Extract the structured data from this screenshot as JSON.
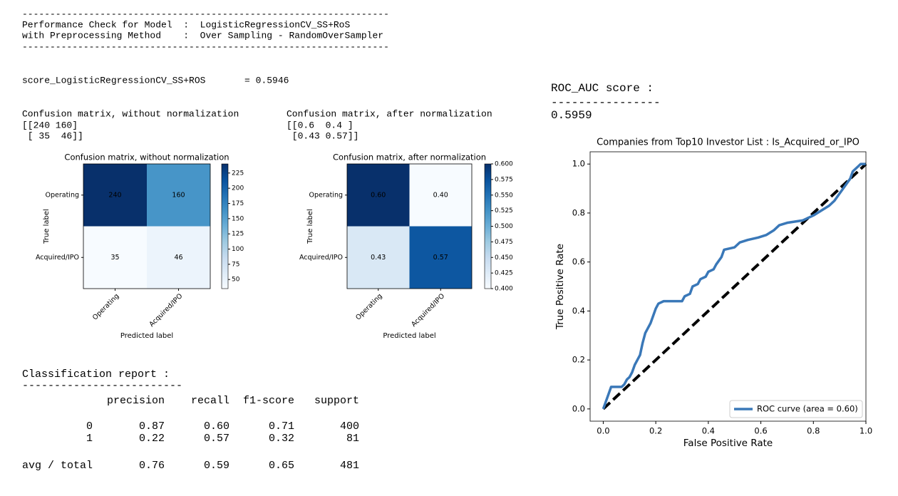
{
  "header": {
    "rule_top": "------------------------------------------------------------------",
    "line1": "Performance Check for Model  :  LogisticRegressionCV_SS+RoS",
    "line2": "with Preprocessing Method    :  Over Sampling - RandomOverSampler",
    "rule_bottom": "------------------------------------------------------------------"
  },
  "score_line": "score_LogisticRegressionCV_SS+ROS       = 0.5946",
  "cm_text": [
    {
      "title": "Confusion matrix, without normalization",
      "lines": [
        "[[240 160]",
        " [ 35  46]]"
      ]
    },
    {
      "title": "Confusion matrix, after normalization",
      "lines": [
        "[[0.6  0.4 ]",
        " [0.43 0.57]]"
      ]
    }
  ],
  "roc_text": {
    "title": "ROC_AUC score :",
    "rule": "----------------",
    "value": "0.5959"
  },
  "report": {
    "title": "Classification report :",
    "rule": "-------------------------",
    "columns": [
      "precision",
      "recall",
      "f1-score",
      "support"
    ],
    "rows": [
      {
        "label": "0",
        "values": [
          "0.87",
          "0.60",
          "0.71",
          "400"
        ]
      },
      {
        "label": "1",
        "values": [
          "0.22",
          "0.57",
          "0.32",
          "81"
        ]
      },
      {
        "label": "avg / total",
        "values": [
          "0.76",
          "0.59",
          "0.65",
          "481"
        ]
      }
    ]
  },
  "chart_data": [
    {
      "type": "heatmap",
      "title": "Confusion matrix, without normalization",
      "xlabel": "Predicted label",
      "ylabel": "True label",
      "x_categories": [
        "Operating",
        "Acquired/IPO"
      ],
      "y_categories": [
        "Operating",
        "Acquired/IPO"
      ],
      "values": [
        [
          240,
          160
        ],
        [
          35,
          46
        ]
      ],
      "colormap": "Blues",
      "clim": [
        35,
        240
      ],
      "cticks": [
        50,
        75,
        100,
        125,
        150,
        175,
        200,
        225
      ]
    },
    {
      "type": "heatmap",
      "title": "Confusion matrix, after normalization",
      "xlabel": "Predicted label",
      "ylabel": "True label",
      "x_categories": [
        "Operating",
        "Acquired/IPO"
      ],
      "y_categories": [
        "Operating",
        "Acquired/IPO"
      ],
      "values": [
        [
          0.6,
          0.4
        ],
        [
          0.43,
          0.57
        ]
      ],
      "value_labels": [
        [
          "0.60",
          "0.40"
        ],
        [
          "0.43",
          "0.57"
        ]
      ],
      "colormap": "Blues",
      "clim": [
        0.4,
        0.6
      ],
      "cticks": [
        {
          "value": 0.4,
          "label": "0.400"
        },
        {
          "value": 0.425,
          "label": "0.425"
        },
        {
          "value": 0.45,
          "label": "0.450"
        },
        {
          "value": 0.475,
          "label": "0.475"
        },
        {
          "value": 0.5,
          "label": "0.500"
        },
        {
          "value": 0.525,
          "label": "0.525"
        },
        {
          "value": 0.55,
          "label": "0.550"
        },
        {
          "value": 0.575,
          "label": "0.575"
        },
        {
          "value": 0.6,
          "label": "0.600"
        }
      ]
    },
    {
      "type": "line",
      "title": "Companies from Top10 Investor List : Is_Acquired_or_IPO",
      "xlabel": "False Positive Rate",
      "ylabel": "True Positive Rate",
      "xlim": [
        -0.05,
        1.0
      ],
      "ylim": [
        -0.05,
        1.05
      ],
      "xticks": [
        {
          "value": 0,
          "label": "0.0"
        },
        0.2,
        0.4,
        0.6,
        0.8,
        {
          "value": 1,
          "label": "1.0"
        }
      ],
      "yticks": [
        {
          "value": 0,
          "label": "0.0"
        },
        0.2,
        0.4,
        0.6,
        0.8,
        {
          "value": 1,
          "label": "1.0"
        }
      ],
      "legend": "lower right",
      "series": [
        {
          "name": "ROC curve (area = 0.60)",
          "color": "#3a78b8",
          "x": [
            0,
            0.02,
            0.03,
            0.07,
            0.08,
            0.09,
            0.1,
            0.11,
            0.12,
            0.13,
            0.14,
            0.15,
            0.16,
            0.17,
            0.18,
            0.19,
            0.2,
            0.21,
            0.23,
            0.3,
            0.31,
            0.33,
            0.34,
            0.36,
            0.37,
            0.39,
            0.4,
            0.42,
            0.43,
            0.45,
            0.46,
            0.5,
            0.52,
            0.55,
            0.59,
            0.62,
            0.65,
            0.67,
            0.7,
            0.76,
            0.8,
            0.83,
            0.86,
            0.88,
            0.9,
            0.92,
            0.94,
            0.95,
            0.97,
            0.98,
            1.0
          ],
          "y": [
            0,
            0.06,
            0.09,
            0.09,
            0.1,
            0.12,
            0.13,
            0.15,
            0.18,
            0.2,
            0.22,
            0.27,
            0.31,
            0.33,
            0.35,
            0.38,
            0.41,
            0.43,
            0.44,
            0.44,
            0.46,
            0.47,
            0.5,
            0.51,
            0.53,
            0.54,
            0.56,
            0.57,
            0.59,
            0.62,
            0.65,
            0.66,
            0.68,
            0.69,
            0.7,
            0.71,
            0.73,
            0.75,
            0.76,
            0.77,
            0.79,
            0.81,
            0.83,
            0.85,
            0.88,
            0.91,
            0.94,
            0.97,
            0.99,
            1.0,
            1.0
          ]
        }
      ],
      "reference_line": {
        "x": [
          0,
          1
        ],
        "y": [
          0,
          1
        ],
        "color": "#000000",
        "style": "dashed"
      }
    }
  ]
}
